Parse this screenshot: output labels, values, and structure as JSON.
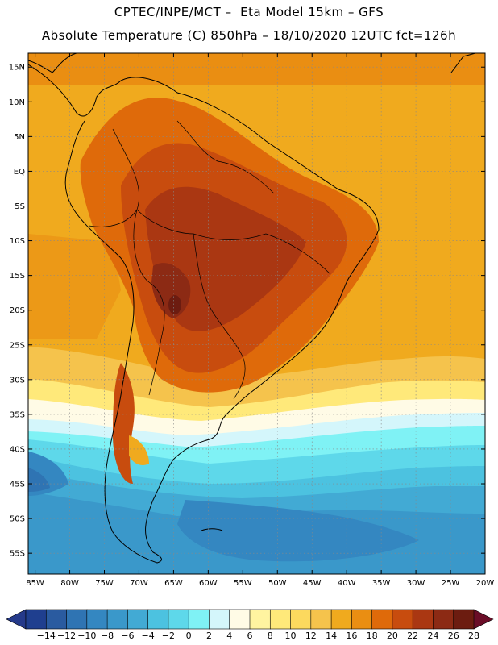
{
  "header": {
    "line1": "CPTEC/INPE/MCT –  Eta Model 15km – GFS",
    "line2": "Absolute Temperature (C) 850hPa – 18/10/2020 12UTC fct=126h"
  },
  "map": {
    "lat_labels": [
      "15N",
      "10N",
      "5N",
      "EQ",
      "5S",
      "10S",
      "15S",
      "20S",
      "25S",
      "30S",
      "35S",
      "40S",
      "45S",
      "50S",
      "55S"
    ],
    "lon_labels": [
      "85W",
      "80W",
      "75W",
      "70W",
      "65W",
      "60W",
      "55W",
      "50W",
      "45W",
      "40W",
      "35W",
      "30W",
      "25W",
      "20W"
    ],
    "lat_range": [
      17,
      -58
    ],
    "lon_range": [
      -86,
      -20
    ]
  },
  "colorbar": {
    "labels": [
      "-14",
      "-12",
      "-10",
      "-8",
      "-6",
      "-4",
      "-2",
      "0",
      "2",
      "4",
      "6",
      "8",
      "10",
      "12",
      "14",
      "16",
      "18",
      "20",
      "22",
      "24",
      "26",
      "28"
    ],
    "colors": [
      "#1f3f8f",
      "#2a5ba0",
      "#2f74b3",
      "#3487c1",
      "#3a98ca",
      "#42aad4",
      "#4cc2e0",
      "#5ed8ea",
      "#7ff2f5",
      "#d4f6fb",
      "#fffbe6",
      "#fff4a0",
      "#ffe97a",
      "#fcd95e",
      "#f5c34c",
      "#f0aa1e",
      "#ea8e12",
      "#df6a0a",
      "#c84c0e",
      "#aa3712",
      "#8c2a14",
      "#6c1c10"
    ],
    "under_color": "#253a8a",
    "over_color": "#6a0d27"
  }
}
